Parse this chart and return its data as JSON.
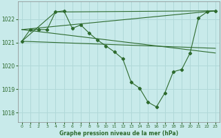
{
  "background_color": "#c8eaea",
  "grid_color": "#b0d8d8",
  "line_color": "#2d6a2d",
  "title": "Graphe pression niveau de la mer (hPa)",
  "xlim": [
    -0.5,
    23.5
  ],
  "ylim": [
    1017.6,
    1022.75
  ],
  "yticks": [
    1018,
    1019,
    1020,
    1021,
    1022
  ],
  "xticks": [
    0,
    1,
    2,
    3,
    4,
    5,
    6,
    7,
    8,
    9,
    10,
    11,
    12,
    13,
    14,
    15,
    16,
    17,
    18,
    19,
    20,
    21,
    22,
    23
  ],
  "series_main_x": [
    0,
    1,
    2,
    3,
    4,
    5,
    6,
    7,
    8,
    9,
    10,
    11,
    12,
    13,
    14,
    15,
    16,
    17,
    18,
    19,
    20,
    21,
    22,
    23
  ],
  "series_main_y": [
    1021.05,
    1021.55,
    1021.55,
    1021.55,
    1022.3,
    1022.35,
    1021.6,
    1021.75,
    1021.4,
    1021.1,
    1020.85,
    1020.6,
    1020.3,
    1019.3,
    1019.05,
    1018.45,
    1018.25,
    1018.85,
    1019.75,
    1019.85,
    1020.55,
    1022.05,
    1022.3,
    1022.35
  ],
  "line1_x": [
    0,
    23
  ],
  "line1_y": [
    1021.55,
    1022.35
  ],
  "line2_x": [
    0,
    4,
    23
  ],
  "line2_y": [
    1021.05,
    1022.3,
    1022.35
  ],
  "line3_x": [
    0,
    23
  ],
  "line3_y": [
    1021.55,
    1020.55
  ],
  "line4_x": [
    0,
    23
  ],
  "line4_y": [
    1021.05,
    1020.75
  ]
}
